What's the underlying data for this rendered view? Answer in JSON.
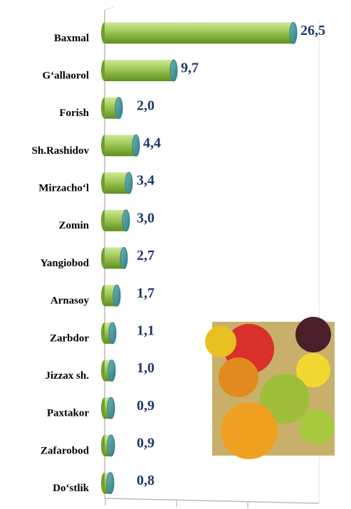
{
  "chart_data": {
    "type": "bar",
    "orientation": "horizontal",
    "categories": [
      "Baxmal",
      "G‘allaorol",
      "Forish",
      "Sh.Rashidov",
      "Mirzacho‘l",
      "Zomin",
      "Yangiobod",
      "Arnasoy",
      "Zarbdor",
      "Jizzax sh.",
      "Paxtakor",
      "Zafarobod",
      "Do‘stlik"
    ],
    "values": [
      26.5,
      9.7,
      2.0,
      4.4,
      3.4,
      3.0,
      2.7,
      1.7,
      1.1,
      1.0,
      0.9,
      0.9,
      0.8
    ],
    "value_labels": [
      "26,5",
      "9,7",
      "2,0",
      "4,4",
      "3,4",
      "3,0",
      "2,7",
      "1,7",
      "1,1",
      "1,0",
      "0,9",
      "0,9",
      "0,8"
    ],
    "color": "#8cbf3f",
    "xlim": [
      0,
      30
    ]
  }
}
